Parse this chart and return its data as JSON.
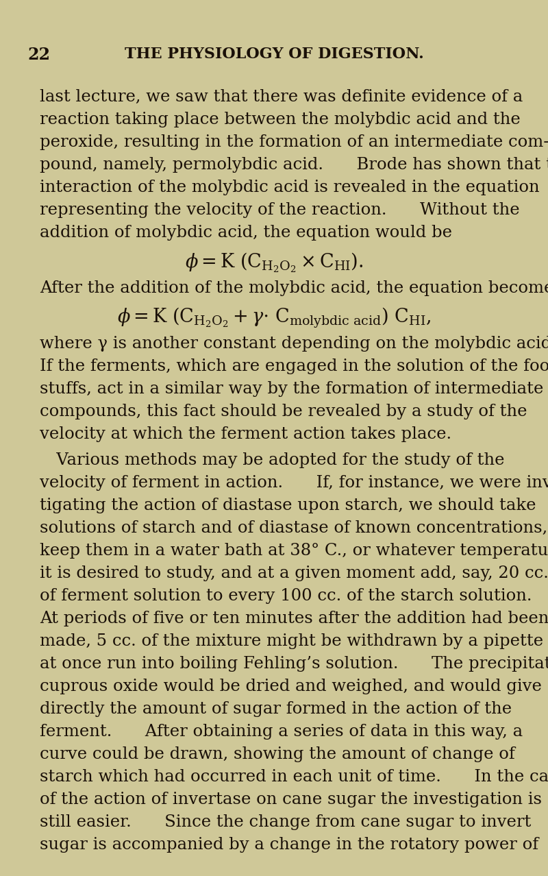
{
  "background_color": "#cfc898",
  "page_number": "22",
  "header": "THE PHYSIOLOGY OF DIGESTION.",
  "text_color": "#1a1008",
  "body_lines_p1": [
    "last lecture, we saw that there was definite evidence of a",
    "reaction taking place between the molybdic acid and the",
    "peroxide, resulting in the formation of an intermediate com-",
    "pound, namely, permolybdic acid.  Brode has shown that the",
    "interaction of the molybdic acid is revealed in the equation",
    "representing the velocity of the reaction.  Without the",
    "addition of molybdic acid, the equation would be"
  ],
  "eq1": "$\\phi = \\mathrm{K}\\ (\\mathrm{C}_{\\mathrm{H_2O_2}} \\times \\mathrm{C}_{\\mathrm{HI}}).$",
  "line_after_eq1": "After the addition of the molybdic acid, the equation becomes",
  "eq2": "$\\phi = \\mathrm{K}\\ (\\mathrm{C}_{\\mathrm{H_2O_2}} + \\gamma{\\cdot}\\ \\mathrm{C}_{\\mathrm{molybdic\\ acid}})\\ \\mathrm{C}_{\\mathrm{HI}},$",
  "body_lines_p2": [
    "where \\u03b3 is another constant depending on the molybdic acid.",
    "If the ferments, which are engaged in the solution of the food-",
    "stuffs, act in a similar way by the formation of intermediate",
    "compounds, this fact should be revealed by a study of the",
    "velocity at which the ferment action takes place."
  ],
  "body_lines_p3": [
    "\\u2003Various methods may be adopted for the study of the",
    "velocity of ferment in action.\\u2003\\u2003If, for instance, we were inves-",
    "tigating the action of diastase upon starch, we should take",
    "solutions of starch and of diastase of known concentrations,",
    "keep them in a water bath at 38\\u00b0 C., or whatever temperature",
    "it is desired to study, and at a given moment add, say, 20 cc.",
    "of ferment solution to every 100 cc. of the starch solution.",
    "At periods of five or ten minutes after the addition had been",
    "made, 5 cc. of the mixture might be withdrawn by a pipette and",
    "at once run into boiling Fehling\\u2019s solution.\\u2003\\u2003The precipitated",
    "cuprous oxide would be dried and weighed, and would give",
    "directly the amount of sugar formed in the action of the",
    "ferment.\\u2003\\u2003After obtaining a series of data in this way, a",
    "curve could be drawn, showing the amount of change of",
    "starch which had occurred in each unit of time.\\u2003\\u2003In the case",
    "of the action of invertase on cane sugar the investigation is",
    "still easier.\\u2003\\u2003Since the change from cane sugar to invert",
    "sugar is accompanied by a change in the rotatory power of"
  ]
}
